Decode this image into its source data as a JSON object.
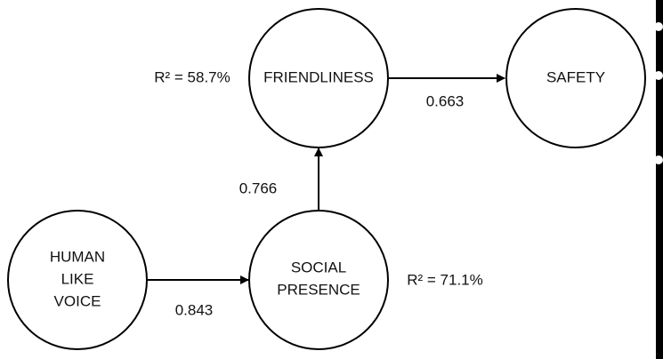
{
  "nodes": [
    {
      "lines": [
        "FRIENDLINESS"
      ],
      "annotation": "R² = 58.7%"
    },
    {
      "lines": [
        "SAFETY"
      ]
    },
    {
      "lines": [
        "HUMAN",
        "LIKE",
        "VOICE"
      ]
    },
    {
      "lines": [
        "SOCIAL",
        "PRESENCE"
      ],
      "annotation": "R² = 71.1%"
    }
  ],
  "edges": [
    {
      "label": "0.843"
    },
    {
      "label": "0.766"
    },
    {
      "label": "0.663"
    }
  ]
}
